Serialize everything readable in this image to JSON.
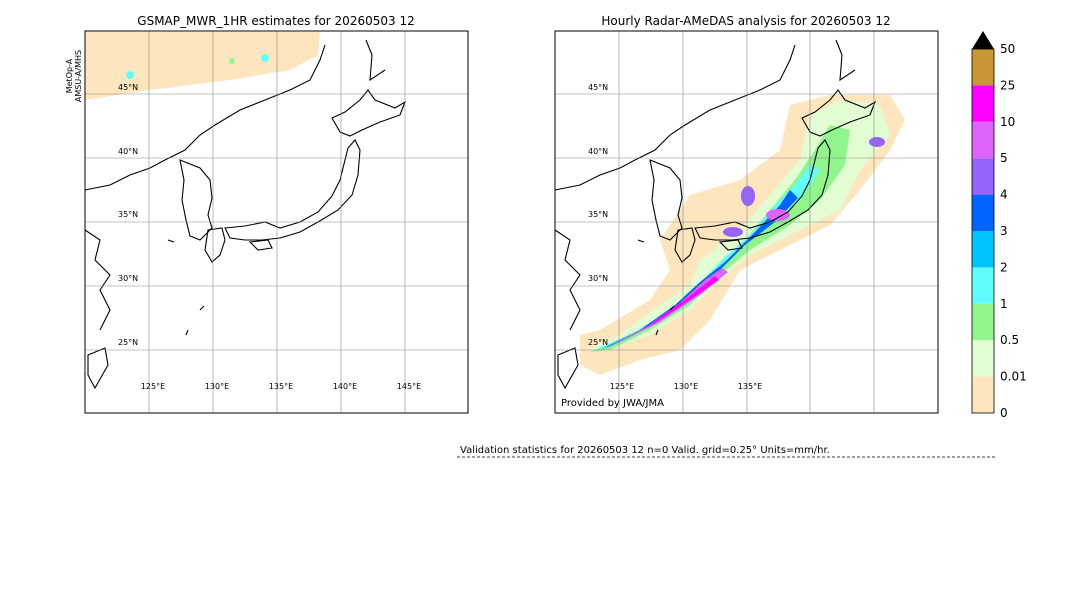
{
  "left_panel": {
    "title": "GSMAP_MWR_1HR estimates for 20260503 12",
    "side_label": [
      "MetOp-A",
      "AMSU-A/MHS"
    ],
    "lat_labels": [
      "45°N",
      "40°N",
      "35°N",
      "30°N",
      "25°N"
    ],
    "lon_labels": [
      "125°E",
      "130°E",
      "135°E",
      "140°E",
      "145°E"
    ]
  },
  "right_panel": {
    "title": "Hourly Radar-AMeDAS analysis for 20260503 12",
    "lat_labels": [
      "45°N",
      "40°N",
      "35°N",
      "30°N",
      "25°N"
    ],
    "lon_labels": [
      "125°E",
      "130°E",
      "135°E"
    ],
    "credit": "Provided by JWA/JMA"
  },
  "colorbar": {
    "labels": [
      "0",
      "0.01",
      "0.5",
      "1",
      "2",
      "3",
      "4",
      "5",
      "10",
      "25",
      "50"
    ],
    "colors": [
      "#fde6bd",
      "#e2fdd2",
      "#90f58c",
      "#60fdfd",
      "#00c4fd",
      "#0064fd",
      "#9664fd",
      "#dc64fd",
      "#fd00fd",
      "#c89632"
    ]
  },
  "footer": "Validation statistics for 20260503 12  n=0 Valid. grid=0.25° Units=mm/hr."
}
